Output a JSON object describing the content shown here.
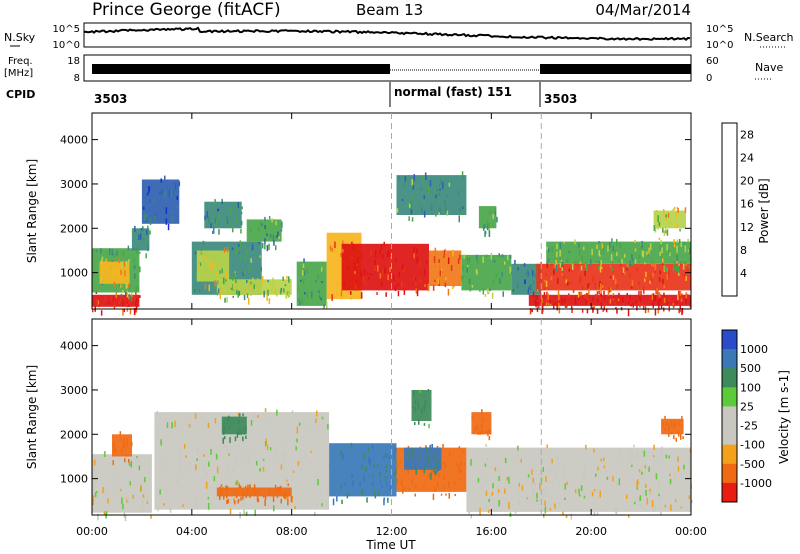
{
  "header": {
    "station": "Prince George (fitACF)",
    "beam": "Beam 13",
    "date": "04/Mar/2014"
  },
  "noise_panel": {
    "left_label": "N.Sky",
    "right_label": "N.Search",
    "left_ticks": [
      "10^5",
      "10^0"
    ],
    "right_ticks": [
      "10^5",
      "10^0"
    ]
  },
  "freq_panel": {
    "left_label_1": "Freq.",
    "left_label_2": "[MHz]",
    "left_ticks": [
      "18",
      "8"
    ],
    "right_label": "Nave",
    "right_ticks": [
      "60",
      "0"
    ]
  },
  "cpid": {
    "label": "CPID",
    "segments": [
      {
        "text": "3503",
        "start_hour": 0
      },
      {
        "text": "normal (fast) 151",
        "start_hour": 12
      },
      {
        "text": "3503",
        "start_hour": 18
      }
    ]
  },
  "axes": {
    "x_label": "Time UT",
    "x_ticks": [
      "00:00",
      "04:00",
      "08:00",
      "12:00",
      "16:00",
      "20:00",
      "00:00"
    ],
    "x_range_hours": [
      0,
      24
    ],
    "y_label": "Slant Range [km]",
    "y_ticks": [
      1000,
      2000,
      3000,
      4000
    ],
    "y_range_km": [
      180,
      4600
    ],
    "mode_change_hours": [
      12,
      18
    ]
  },
  "chart_data": [
    {
      "type": "heatmap",
      "title": "",
      "xlabel": "Time UT",
      "ylabel": "Slant Range [km]",
      "colorbar_label": "Power [dB]",
      "colorbar_ticks": [
        4,
        8,
        12,
        16,
        20,
        24,
        28
      ],
      "colorbar_range": [
        0,
        30
      ],
      "colors": [
        "#1b2fd0",
        "#2f5fb0",
        "#3b8a7c",
        "#4aa64a",
        "#b8d34a",
        "#f7b51e",
        "#f07a18",
        "#e8341a",
        "#dd1212"
      ],
      "x_range": [
        0,
        24
      ],
      "y_range": [
        180,
        4600
      ],
      "regions": [
        {
          "t0": 0.0,
          "t1": 1.9,
          "r0": 230,
          "r1": 500,
          "v": 27
        },
        {
          "t0": 0.0,
          "t1": 1.9,
          "r0": 550,
          "r1": 1550,
          "v": 11
        },
        {
          "t0": 0.3,
          "t1": 1.5,
          "r0": 750,
          "r1": 1250,
          "v": 18
        },
        {
          "t0": 1.6,
          "t1": 2.3,
          "r0": 1500,
          "r1": 2000,
          "v": 9
        },
        {
          "t0": 4.0,
          "t1": 6.8,
          "r0": 500,
          "r1": 1700,
          "v": 9
        },
        {
          "t0": 4.2,
          "t1": 5.5,
          "r0": 800,
          "r1": 1500,
          "v": 16
        },
        {
          "t0": 5.0,
          "t1": 8.0,
          "r0": 500,
          "r1": 850,
          "v": 14
        },
        {
          "t0": 4.5,
          "t1": 6.0,
          "r0": 2000,
          "r1": 2600,
          "v": 8
        },
        {
          "t0": 6.2,
          "t1": 7.6,
          "r0": 1700,
          "r1": 2200,
          "v": 10
        },
        {
          "t0": 2.0,
          "t1": 3.5,
          "r0": 2100,
          "r1": 3100,
          "v": 5
        },
        {
          "t0": 8.2,
          "t1": 9.4,
          "r0": 250,
          "r1": 1250,
          "v": 10
        },
        {
          "t0": 9.4,
          "t1": 10.8,
          "r0": 400,
          "r1": 1900,
          "v": 19
        },
        {
          "t0": 10.0,
          "t1": 13.5,
          "r0": 600,
          "r1": 1650,
          "v": 27
        },
        {
          "t0": 13.5,
          "t1": 14.8,
          "r0": 700,
          "r1": 1500,
          "v": 22
        },
        {
          "t0": 14.8,
          "t1": 16.8,
          "r0": 600,
          "r1": 1400,
          "v": 12
        },
        {
          "t0": 16.8,
          "t1": 18.0,
          "r0": 500,
          "r1": 1200,
          "v": 8
        },
        {
          "t0": 17.5,
          "t1": 24.0,
          "r0": 250,
          "r1": 500,
          "v": 27
        },
        {
          "t0": 17.8,
          "t1": 24.0,
          "r0": 600,
          "r1": 1200,
          "v": 24
        },
        {
          "t0": 18.2,
          "t1": 24.0,
          "r0": 1200,
          "r1": 1700,
          "v": 13
        },
        {
          "t0": 12.2,
          "t1": 15.0,
          "r0": 2300,
          "r1": 3200,
          "v": 9
        },
        {
          "t0": 15.5,
          "t1": 16.2,
          "r0": 2000,
          "r1": 2500,
          "v": 10
        },
        {
          "t0": 22.5,
          "t1": 23.8,
          "r0": 2000,
          "r1": 2400,
          "v": 16
        }
      ]
    },
    {
      "type": "heatmap",
      "title": "",
      "xlabel": "Time UT",
      "ylabel": "Slant Range [km]",
      "colorbar_label": "Velocity [m s-1]",
      "colorbar_ticks": [
        1000,
        500,
        100,
        25,
        -25,
        -100,
        -500,
        -1000
      ],
      "colorbar_range": [
        -1200,
        1200
      ],
      "colors": [
        "#2a4cc8",
        "#3a78b8",
        "#3d8a5a",
        "#5ccb3a",
        "#c8c8c0",
        "#c8c8c0",
        "#f5a01c",
        "#ef6a12",
        "#e81c10"
      ],
      "x_range": [
        0,
        24
      ],
      "y_range": [
        180,
        4600
      ],
      "regions": [
        {
          "t0": 0.0,
          "t1": 2.4,
          "r0": 230,
          "r1": 1550,
          "v": 0
        },
        {
          "t0": 0.8,
          "t1": 1.6,
          "r0": 1500,
          "r1": 2000,
          "v": -300
        },
        {
          "t0": 2.5,
          "t1": 9.5,
          "r0": 300,
          "r1": 2500,
          "v": 0
        },
        {
          "t0": 5.0,
          "t1": 8.0,
          "r0": 600,
          "r1": 800,
          "v": -300
        },
        {
          "t0": 5.2,
          "t1": 6.2,
          "r0": 2000,
          "r1": 2400,
          "v": 150
        },
        {
          "t0": 9.5,
          "t1": 12.2,
          "r0": 600,
          "r1": 1800,
          "v": 300
        },
        {
          "t0": 12.2,
          "t1": 15.0,
          "r0": 700,
          "r1": 1700,
          "v": -250
        },
        {
          "t0": 12.5,
          "t1": 14.0,
          "r0": 1200,
          "r1": 1700,
          "v": 300
        },
        {
          "t0": 15.0,
          "t1": 24.0,
          "r0": 250,
          "r1": 1700,
          "v": 0
        },
        {
          "t0": 15.2,
          "t1": 16.0,
          "r0": 2000,
          "r1": 2500,
          "v": -300
        },
        {
          "t0": 22.8,
          "t1": 23.7,
          "r0": 2000,
          "r1": 2350,
          "v": -300
        },
        {
          "t0": 12.8,
          "t1": 13.6,
          "r0": 2300,
          "r1": 3000,
          "v": 150
        }
      ]
    }
  ]
}
